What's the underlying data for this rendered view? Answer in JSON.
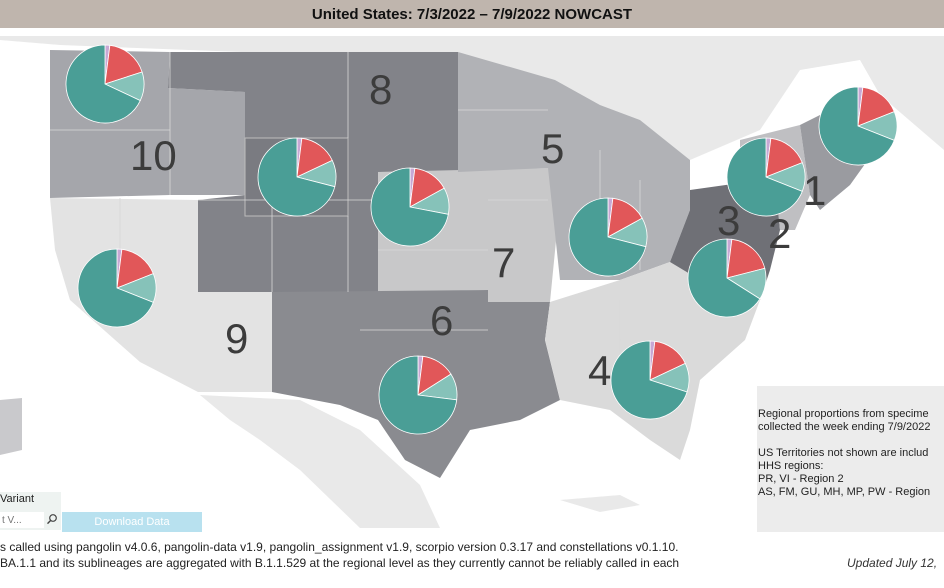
{
  "header": {
    "title": "United States: 7/3/2022 – 7/9/2022 NOWCAST"
  },
  "regions": [
    {
      "number": "1"
    },
    {
      "number": "2"
    },
    {
      "number": "3"
    },
    {
      "number": "4"
    },
    {
      "number": "5"
    },
    {
      "number": "6"
    },
    {
      "number": "7"
    },
    {
      "number": "8"
    },
    {
      "number": "9"
    },
    {
      "number": "10"
    }
  ],
  "pie_colors": {
    "dominant": "#4a9e96",
    "secondary": "#e15759",
    "tertiary": "#86c2b9",
    "minor": "#c7a8d4"
  },
  "info_box": {
    "line1": "Regional proportions from specime",
    "line2": "collected the week ending 7/9/2022",
    "line3": "US Territories not shown are includ",
    "line4": "HHS regions:",
    "line5": "PR, VI - Region 2",
    "line6": "AS, FM, GU, MH, MP, PW - Region"
  },
  "controls": {
    "variant_label": "Variant",
    "variant_placeholder": "t V...",
    "download_label": "Download Data"
  },
  "footer": {
    "line1": "s called using pangolin v4.0.6, pangolin-data v1.9, pangolin_assignment v1.9, scorpio version 0.3.17 and constellations v0.1.10.",
    "line2": "BA.1.1 and its sublineages are aggregated with B.1.1.529 at the regional level as they currently cannot be reliably called in each",
    "updated": "Updated July 12,"
  }
}
